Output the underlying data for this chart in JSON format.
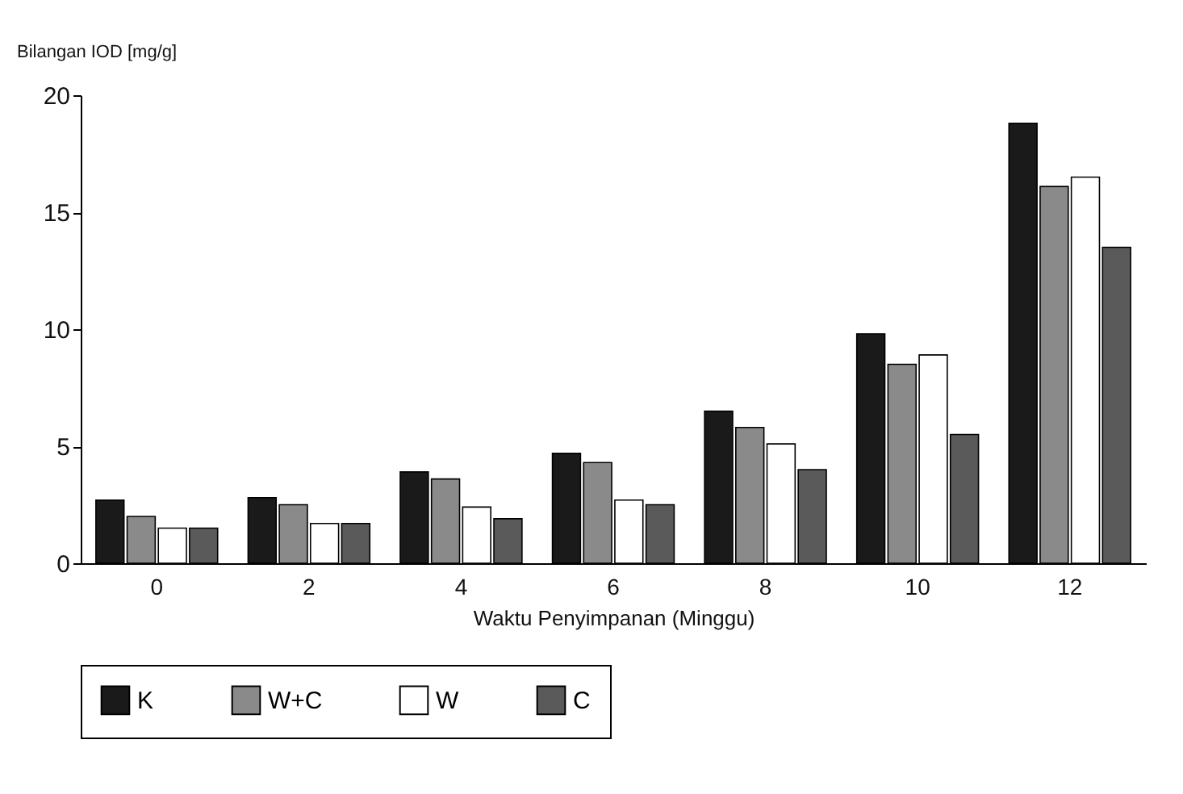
{
  "chart_data": {
    "type": "bar",
    "ylabel": "Bilangan IOD [mg/g]",
    "xlabel": "Waktu Penyimpanan (Minggu)",
    "categories": [
      "0",
      "2",
      "4",
      "6",
      "8",
      "10",
      "12"
    ],
    "series": [
      {
        "name": "K",
        "color": "#1a1a1a",
        "values": [
          2.7,
          2.8,
          3.9,
          4.7,
          6.5,
          9.8,
          18.8
        ]
      },
      {
        "name": "W+C",
        "color": "#8a8a8a",
        "values": [
          2.0,
          2.5,
          3.6,
          4.3,
          5.8,
          8.5,
          16.1
        ]
      },
      {
        "name": "W",
        "color": "#ffffff",
        "values": [
          1.5,
          1.7,
          2.4,
          2.7,
          5.1,
          8.9,
          16.5
        ]
      },
      {
        "name": "C",
        "color": "#5a5a5a",
        "values": [
          1.5,
          1.7,
          1.9,
          2.5,
          4.0,
          5.5,
          13.5
        ]
      }
    ],
    "ylim": [
      0,
      20
    ],
    "yticks": [
      0,
      5,
      10,
      15,
      20
    ],
    "grid": false,
    "legend": "bottom"
  }
}
